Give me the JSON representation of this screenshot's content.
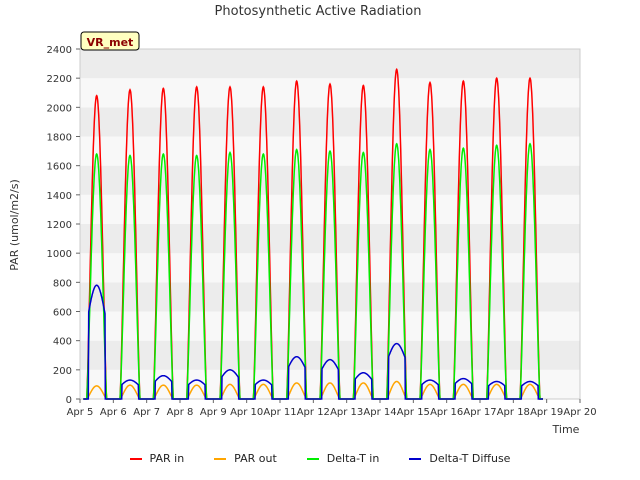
{
  "chart_data": {
    "type": "line",
    "title": "Photosynthetic Active Radiation",
    "xlabel": "Time",
    "ylabel": "PAR (umol/m2/s)",
    "ylim": [
      0,
      2400
    ],
    "yticks": [
      0,
      200,
      400,
      600,
      800,
      1000,
      1200,
      1400,
      1600,
      1800,
      2000,
      2200,
      2400
    ],
    "xlim": [
      5,
      20
    ],
    "xticks": [
      5,
      6,
      7,
      8,
      9,
      10,
      11,
      12,
      13,
      14,
      15,
      16,
      17,
      18,
      19,
      20
    ],
    "xtick_labels": [
      "Apr 5",
      "Apr 6",
      "Apr 7",
      "Apr 8",
      "Apr 9",
      "Apr 10",
      "Apr 11",
      "Apr 12",
      "Apr 13",
      "Apr 14",
      "Apr 15",
      "Apr 16",
      "Apr 17",
      "Apr 18",
      "Apr 19",
      "Apr 20"
    ],
    "grid": "horizontal bands",
    "annotation": "VR_met",
    "days": [
      5.5,
      6.5,
      7.5,
      8.5,
      9.5,
      10.5,
      11.5,
      12.5,
      13.5,
      14.5,
      15.5,
      16.5,
      17.5,
      18.5
    ],
    "series": [
      {
        "name": "PAR in",
        "color": "#ff0000",
        "daily_peaks": [
          2080,
          2120,
          2130,
          2140,
          2140,
          2140,
          2180,
          2160,
          2150,
          2260,
          2170,
          2180,
          2200,
          2200
        ]
      },
      {
        "name": "PAR out",
        "color": "#ffa500",
        "daily_peaks": [
          90,
          95,
          95,
          95,
          100,
          100,
          110,
          110,
          110,
          120,
          100,
          100,
          100,
          100
        ]
      },
      {
        "name": "Delta-T in",
        "color": "#00ee00",
        "daily_peaks": [
          1680,
          1670,
          1680,
          1670,
          1690,
          1680,
          1710,
          1700,
          1690,
          1750,
          1710,
          1720,
          1740,
          1750
        ]
      },
      {
        "name": "Delta-T Diffuse",
        "color": "#0000cc",
        "daily_peaks": [
          780,
          130,
          160,
          130,
          200,
          130,
          290,
          270,
          180,
          380,
          130,
          140,
          120,
          120
        ]
      }
    ]
  }
}
